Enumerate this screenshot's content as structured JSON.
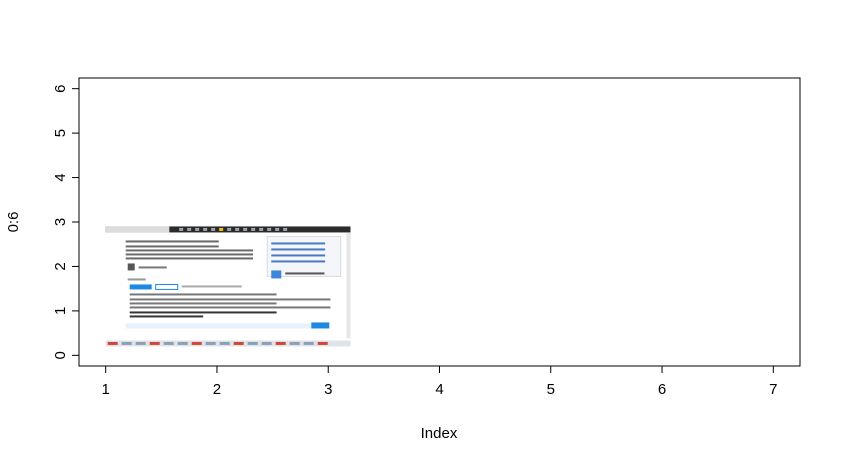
{
  "chart_data": {
    "type": "scatter",
    "title": "",
    "xlabel": "Index",
    "ylabel": "0:6",
    "x": [
      1,
      2,
      3,
      4,
      5,
      6,
      7
    ],
    "y": [
      0,
      1,
      2,
      3,
      4,
      5,
      6
    ],
    "xlim": [
      0.76,
      7.24
    ],
    "ylim": [
      -0.24,
      6.24
    ],
    "xticks": [
      "1",
      "2",
      "3",
      "4",
      "5",
      "6",
      "7"
    ],
    "yticks": [
      "0",
      "1",
      "2",
      "3",
      "4",
      "5",
      "6"
    ],
    "points_visible": false,
    "grid": false,
    "legend": "none",
    "overlay_image": {
      "description": "embedded screenshot of a web page",
      "x_range": [
        1,
        3.2
      ],
      "y_range": [
        0.2,
        2.9
      ]
    },
    "colors": {
      "axis": "#000000",
      "background": "#ffffff"
    }
  }
}
